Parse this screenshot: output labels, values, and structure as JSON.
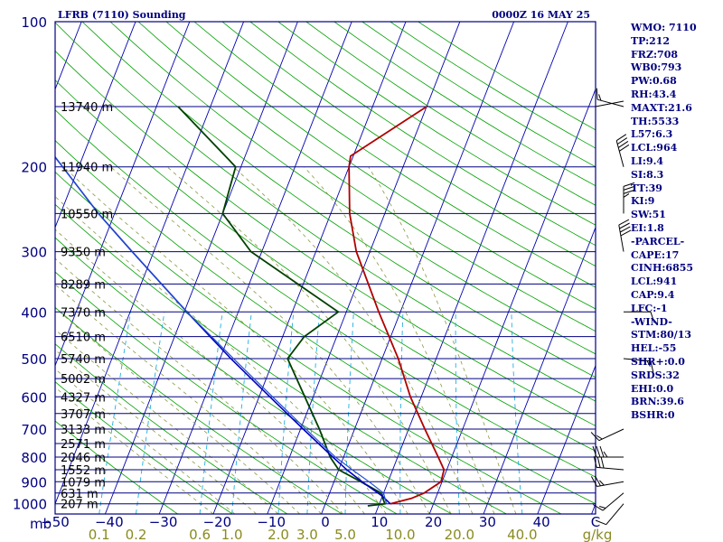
{
  "header": {
    "title": "LFRB (7110) Sounding",
    "time": "0000Z 16 MAY 25"
  },
  "stats": [
    "WMO: 7110",
    "TP:212",
    "FRZ:708",
    "WB0:793",
    "PW:0.68",
    "RH:43.4",
    "MAXT:21.6",
    "TH:5533",
    "L57:6.3",
    "LCL:964",
    "LI:9.4",
    "SI:8.3",
    "TT:39",
    "KI:9",
    "SW:51",
    "EI:1.8",
    "-PARCEL-",
    "CAPE:17",
    "CINH:6855",
    "LCL:941",
    "CAP:9.4",
    "LFC:-1",
    "-WIND-",
    "STM:80/13",
    "HEL:-55",
    "SHR+:0.0",
    "SRDS:32",
    "EHI:0.0",
    "BRN:39.6",
    "BSHR:0"
  ],
  "colors": {
    "axis": "#000080",
    "isobar": "#000080",
    "isotherm": "#0000b0",
    "dry_adiabat": "#00a000",
    "moist_adiabat": "#8a9a40",
    "mixing_ratio": "#20b0e0",
    "temperature": "#b00000",
    "dewpoint": "#004000",
    "parcel": "#0000c0",
    "wetbulb": "#2050d0",
    "mixing_label": "#8a8a20",
    "barb": "#000000"
  },
  "chart_data": {
    "type": "skew-t",
    "pressure_levels": [
      {
        "p": 100,
        "label": "100"
      },
      {
        "p": 200,
        "label": "200"
      },
      {
        "p": 300,
        "label": "300"
      },
      {
        "p": 400,
        "label": "400"
      },
      {
        "p": 500,
        "label": "500"
      },
      {
        "p": 600,
        "label": "600"
      },
      {
        "p": 700,
        "label": "700"
      },
      {
        "p": 800,
        "label": "800"
      },
      {
        "p": 900,
        "label": "900"
      },
      {
        "p": 1000,
        "label": "1000"
      }
    ],
    "plimits": [
      100,
      1050
    ],
    "xlim_top": [
      -50,
      50
    ],
    "xlim_bottom": [
      -50,
      50
    ],
    "temp_ticks": [
      {
        "t": -50,
        "label": "−50"
      },
      {
        "t": -40,
        "label": "−40"
      },
      {
        "t": -30,
        "label": "−30"
      },
      {
        "t": -20,
        "label": "−20"
      },
      {
        "t": -10,
        "label": "−10"
      },
      {
        "t": 0,
        "label": "0"
      },
      {
        "t": 10,
        "label": "10"
      },
      {
        "t": 20,
        "label": "20"
      },
      {
        "t": 30,
        "label": "30"
      },
      {
        "t": 40,
        "label": "40"
      },
      {
        "t": 50,
        "label": "C"
      }
    ],
    "axis_unit_left": "mb",
    "mixing_ratio_labels": [
      {
        "w": 0.1,
        "label": "0.1"
      },
      {
        "w": 0.2,
        "label": "0.2"
      },
      {
        "w": 0.6,
        "label": "0.6"
      },
      {
        "w": 1.0,
        "label": "1.0"
      },
      {
        "w": 2.0,
        "label": "2.0"
      },
      {
        "w": 3.0,
        "label": "3.0"
      },
      {
        "w": 5.0,
        "label": "5.0"
      },
      {
        "w": 10.0,
        "label": "10.0"
      },
      {
        "w": 20.0,
        "label": "20.0"
      },
      {
        "w": 40.0,
        "label": "40.0"
      }
    ],
    "mixing_ratio_unit": "g/kg",
    "height_levels": [
      {
        "p": 150,
        "label": "13740 m"
      },
      {
        "p": 200,
        "label": "11940 m"
      },
      {
        "p": 250,
        "label": "10550 m"
      },
      {
        "p": 300,
        "label": "9350 m"
      },
      {
        "p": 350,
        "label": "8289 m"
      },
      {
        "p": 400,
        "label": "7370 m"
      },
      {
        "p": 450,
        "label": "6510 m"
      },
      {
        "p": 500,
        "label": "5740 m"
      },
      {
        "p": 550,
        "label": "5002 m"
      },
      {
        "p": 600,
        "label": "4327 m"
      },
      {
        "p": 650,
        "label": "3707 m"
      },
      {
        "p": 700,
        "label": "3133 m"
      },
      {
        "p": 750,
        "label": "2571 m"
      },
      {
        "p": 800,
        "label": "2046 m"
      },
      {
        "p": 850,
        "label": "1552 m"
      },
      {
        "p": 900,
        "label": "1079 m"
      },
      {
        "p": 950,
        "label": "631 m"
      },
      {
        "p": 1000,
        "label": "207 m"
      }
    ],
    "series": [
      {
        "name": "temperature",
        "points": [
          [
            1000,
            12.0
          ],
          [
            975,
            15.5
          ],
          [
            950,
            17.5
          ],
          [
            900,
            19.8
          ],
          [
            850,
            19.5
          ],
          [
            800,
            17.5
          ],
          [
            700,
            13.0
          ],
          [
            600,
            8.0
          ],
          [
            500,
            3.0
          ],
          [
            400,
            -4.0
          ],
          [
            300,
            -12.5
          ],
          [
            250,
            -16.5
          ],
          [
            200,
            -20.0
          ],
          [
            190,
            -20.5
          ],
          [
            150,
            -10.0
          ]
        ]
      },
      {
        "name": "dewpoint",
        "points": [
          [
            1010,
            8.0
          ],
          [
            1000,
            11.0
          ],
          [
            950,
            9.5
          ],
          [
            900,
            5.0
          ],
          [
            850,
            0.0
          ],
          [
            800,
            -2.5
          ],
          [
            700,
            -6.5
          ],
          [
            500,
            -17.5
          ],
          [
            450,
            -16.0
          ],
          [
            400,
            -11.5
          ],
          [
            300,
            -32.0
          ],
          [
            250,
            -40.0
          ],
          [
            200,
            -41.0
          ],
          [
            150,
            -56.0
          ]
        ]
      },
      {
        "name": "parcel",
        "points": [
          [
            1000,
            12.0
          ],
          [
            964,
            10.0
          ],
          [
            900,
            5.2
          ],
          [
            850,
            1.5
          ],
          [
            800,
            -2.0
          ],
          [
            700,
            -9.5
          ],
          [
            600,
            -18.0
          ],
          [
            500,
            -28.0
          ],
          [
            400,
            -39.5
          ],
          [
            300,
            -54.0
          ],
          [
            250,
            -63.0
          ],
          [
            200,
            -73.0
          ],
          [
            150,
            -86.0
          ],
          [
            115,
            -96.0
          ]
        ]
      },
      {
        "name": "wetbulb",
        "points": [
          [
            1000,
            11.3
          ],
          [
            950,
            10.0
          ],
          [
            900,
            6.5
          ],
          [
            850,
            2.5
          ],
          [
            800,
            -1.5
          ],
          [
            700,
            -9.0
          ],
          [
            600,
            -17.5
          ],
          [
            500,
            -27.5
          ],
          [
            400,
            -39.5
          ],
          [
            300,
            -54.0
          ],
          [
            250,
            -63.0
          ],
          [
            200,
            -73.0
          ],
          [
            150,
            -86.0
          ],
          [
            115,
            -96.0
          ]
        ]
      }
    ],
    "winds": [
      {
        "p": 1000,
        "dir": 220,
        "spd": 10
      },
      {
        "p": 950,
        "dir": 230,
        "spd": 15
      },
      {
        "p": 900,
        "dir": 260,
        "spd": 25
      },
      {
        "p": 850,
        "dir": 275,
        "spd": 30
      },
      {
        "p": 800,
        "dir": 270,
        "spd": 35
      },
      {
        "p": 700,
        "dir": 245,
        "spd": 15
      },
      {
        "p": 500,
        "dir": 95,
        "spd": 15
      },
      {
        "p": 400,
        "dir": 90,
        "spd": 10
      },
      {
        "p": 300,
        "dir": 350,
        "spd": 40
      },
      {
        "p": 250,
        "dir": 360,
        "spd": 35
      },
      {
        "p": 200,
        "dir": 345,
        "spd": 40
      },
      {
        "p": 150,
        "dir": 285,
        "spd": 15
      }
    ]
  }
}
